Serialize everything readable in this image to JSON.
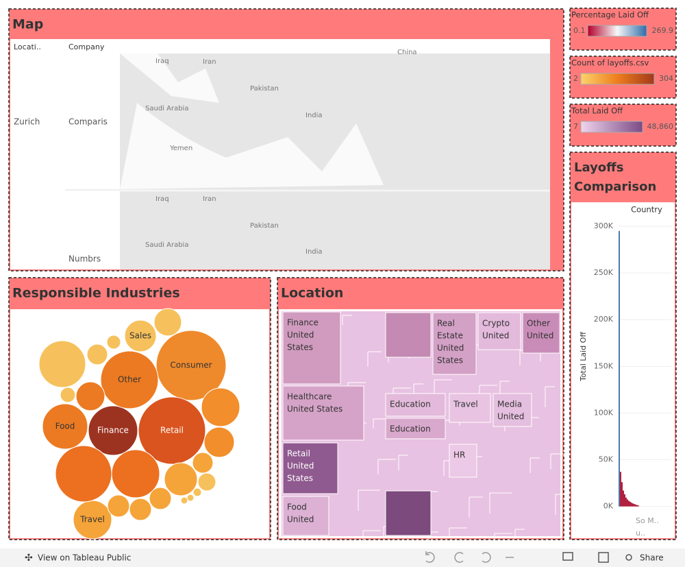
{
  "map": {
    "title": "Map",
    "columns": [
      "Locati..",
      "Company"
    ],
    "location": "Zurich",
    "companies": [
      "Comparis",
      "Numbrs"
    ],
    "places_top": [
      "Iraq",
      "Iran",
      "Pakistan",
      "Saudi Arabia",
      "India",
      "Yemen",
      "China"
    ],
    "places_bottom": [
      "Iraq",
      "Iran",
      "Pakistan",
      "Saudi Arabia",
      "India"
    ]
  },
  "legends": [
    {
      "title": "Percentage Laid Off",
      "min": "0.1",
      "max": "269.9"
    },
    {
      "title": "Count of layoffs.csv",
      "min": "2",
      "max": "304"
    },
    {
      "title": "Total Laid Off",
      "min": "7",
      "max": "48,860"
    }
  ],
  "industries": {
    "title": "Responsible Industries",
    "labels": [
      "Consumer",
      "Retail",
      "Finance",
      "Other",
      "Food",
      "Sales",
      "Travel"
    ]
  },
  "location": {
    "title": "Location",
    "cells": [
      [
        "Finance",
        "United",
        "States"
      ],
      [
        "Healthcare",
        "United States"
      ],
      [
        "Retail",
        "United",
        "States"
      ],
      [
        "Food",
        "United"
      ],
      [
        "Real",
        "Estate",
        "United",
        "States"
      ],
      [
        "Crypto",
        "United"
      ],
      [
        "Other",
        "United"
      ],
      [
        "Education"
      ],
      [
        "Education"
      ],
      [
        "Travel"
      ],
      [
        "Media",
        "United"
      ],
      [
        "HR"
      ]
    ]
  },
  "chart_data": {
    "type": "bar",
    "title": "Layoffs Comparison",
    "header": "Country",
    "y_label": "Total Laid Off",
    "x_label": [
      "So M..",
      "u.."
    ],
    "categories": [
      null,
      null,
      null,
      null,
      null,
      null,
      null,
      null,
      null,
      null,
      null,
      null,
      null,
      null,
      null
    ],
    "values": [
      295000,
      37000,
      26000,
      17000,
      13000,
      9500,
      7500,
      6000,
      5000,
      4000,
      3200,
      2600,
      2000,
      1500,
      1000
    ],
    "colors": [
      "#4e79a7",
      "#b0213f",
      "#b0213f",
      "#b0213f",
      "#b0213f",
      "#b0213f",
      "#b0213f",
      "#b0213f",
      "#b0213f",
      "#b0213f",
      "#b0213f",
      "#b0213f",
      "#b0213f",
      "#b0213f",
      "#b0213f"
    ],
    "ylim": [
      -23000,
      322000
    ],
    "yticks": [
      {
        "value": 0,
        "label": "0K"
      },
      {
        "value": 50000,
        "label": "50K"
      },
      {
        "value": 100000,
        "label": "100K"
      },
      {
        "value": 150000,
        "label": "150K"
      },
      {
        "value": 200000,
        "label": "200K"
      },
      {
        "value": 250000,
        "label": "250K"
      },
      {
        "value": 300000,
        "label": "300K"
      }
    ],
    "grid": true
  },
  "toolbar": {
    "view": "View on Tableau Public",
    "share": "Share"
  }
}
